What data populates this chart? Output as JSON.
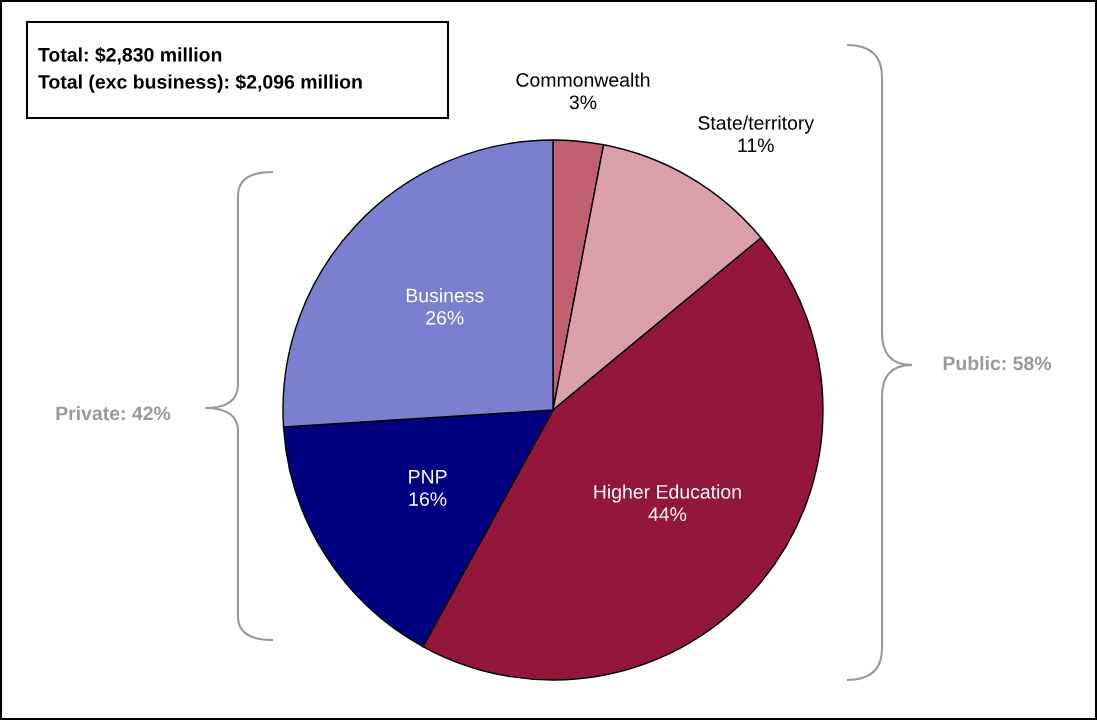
{
  "chart_data": {
    "type": "pie",
    "categories": [
      "Commonwealth",
      "State/territory",
      "Higher Education",
      "PNP",
      "Business"
    ],
    "values": [
      3,
      11,
      44,
      16,
      26
    ],
    "value_labels": [
      "3%",
      "11%",
      "44%",
      "16%",
      "26%"
    ],
    "colors": [
      "#c06070",
      "#d9a0aa",
      "#93173a",
      "#000080",
      "#7b7fcf"
    ],
    "annotations": [
      "Total: $2,830 million\nTotal (exc business): $2,096 million",
      "Private: 42%",
      "Public: 58%"
    ]
  }
}
